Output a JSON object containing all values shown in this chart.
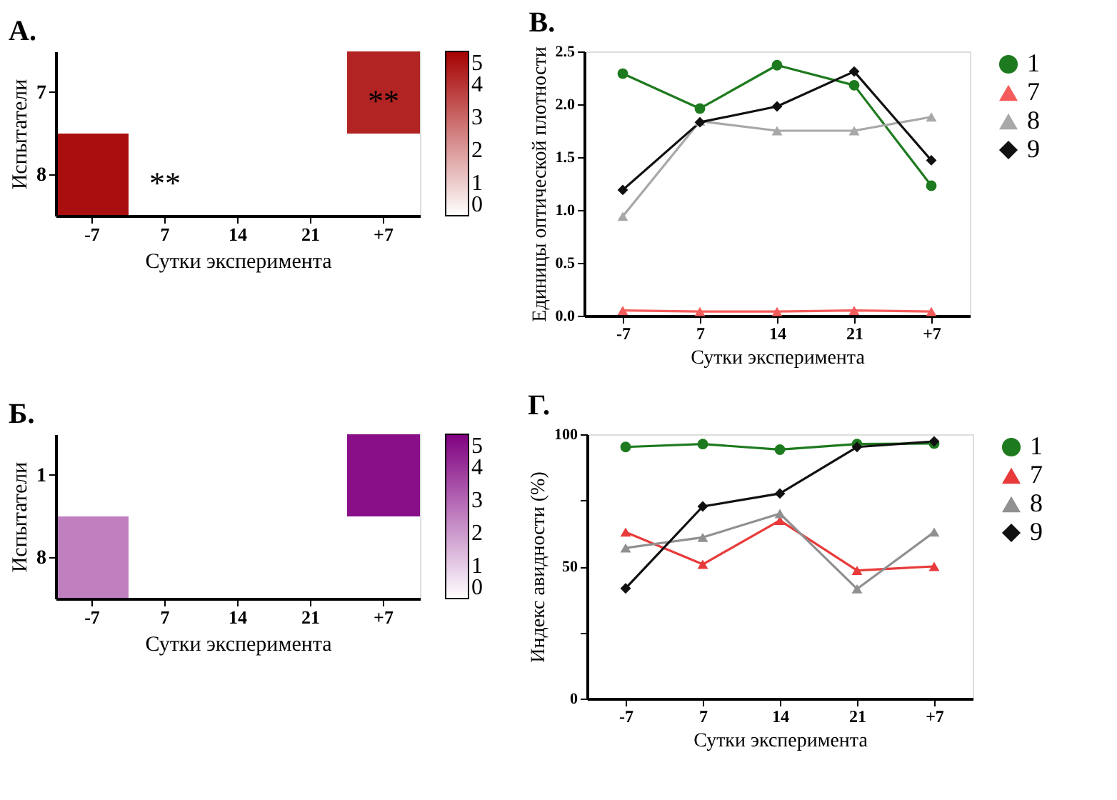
{
  "chart_data": [
    {
      "type": "heatmap",
      "title": "A.",
      "xlabel": "Сутки эксперимента",
      "ylabel": "Испытатели",
      "categories": [
        "-7",
        "7",
        "14",
        "21",
        "+7"
      ],
      "y_categories": [
        "7",
        "8"
      ],
      "cells": [
        [
          0,
          0,
          0,
          0,
          4.3
        ],
        [
          4.7,
          0,
          0,
          0,
          0
        ]
      ],
      "cell_labels": [
        [
          null,
          null,
          null,
          null,
          "**"
        ],
        [
          null,
          "**",
          null,
          null,
          null
        ]
      ],
      "colors": [
        "#ffffff",
        "#a50000"
      ],
      "clim": [
        0,
        5
      ],
      "cticks": [
        0,
        1,
        2,
        3,
        4,
        5
      ]
    },
    {
      "type": "line",
      "title": "B.",
      "xlabel": "Сутки эксперимента",
      "ylabel": "Единицы оптической плотности",
      "categories": [
        "-7",
        "7",
        "14",
        "21",
        "+7"
      ],
      "ylim": [
        0,
        2.5
      ],
      "yticks": [
        {
          "value": 0,
          "label": "0.0"
        },
        0.5,
        {
          "value": 1,
          "label": "1.0"
        },
        1.5,
        {
          "value": 2,
          "label": "2.0"
        },
        2.5
      ],
      "grid": false,
      "legend": "right",
      "series": [
        {
          "name": "1",
          "color": "#1e7a1e",
          "marker": "circle",
          "values": [
            2.29,
            1.96,
            2.37,
            2.18,
            1.23
          ]
        },
        {
          "name": "7",
          "color": "#f45c5c",
          "marker": "triangle",
          "values": [
            0.05,
            0.04,
            0.04,
            0.05,
            0.04
          ]
        },
        {
          "name": "8",
          "color": "#a8a8a8",
          "marker": "triangle",
          "values": [
            0.94,
            1.84,
            1.75,
            1.75,
            1.88
          ]
        },
        {
          "name": "9",
          "color": "#111111",
          "marker": "diamond",
          "values": [
            1.19,
            1.83,
            1.98,
            2.31,
            1.47
          ]
        }
      ]
    },
    {
      "type": "heatmap",
      "title": "Б.",
      "xlabel": "Сутки эксперимента",
      "ylabel": "Испытатели",
      "categories": [
        "-7",
        "7",
        "14",
        "21",
        "+7"
      ],
      "y_categories": [
        "1",
        "8"
      ],
      "cells": [
        [
          0,
          0,
          0,
          0,
          4.7
        ],
        [
          2.5,
          0,
          0,
          0,
          0
        ]
      ],
      "colors": [
        "#ffffff",
        "#800080"
      ],
      "clim": [
        0,
        5
      ],
      "cticks": [
        0,
        1,
        2,
        3,
        4,
        5
      ]
    },
    {
      "type": "line",
      "title": "Г.",
      "xlabel": "Сутки эксперимента",
      "ylabel": "Индекс авидности (%)",
      "categories": [
        "-7",
        "7",
        "14",
        "21",
        "+7"
      ],
      "ylim": [
        0,
        100
      ],
      "yticks": [
        0,
        {
          "value": 25,
          "label": null
        },
        50,
        {
          "value": 75,
          "label": null
        },
        100
      ],
      "grid": false,
      "legend": "right",
      "series": [
        {
          "name": "1",
          "color": "#1e7a1e",
          "marker": "circle",
          "values": [
            95.2,
            96.3,
            94.2,
            96.3,
            96.5
          ]
        },
        {
          "name": "7",
          "color": "#e83a3a",
          "marker": "triangle",
          "values": [
            63,
            50.8,
            67.4,
            48.5,
            50
          ]
        },
        {
          "name": "8",
          "color": "#909090",
          "marker": "triangle",
          "values": [
            57,
            61,
            70,
            41.5,
            63
          ]
        },
        {
          "name": "9",
          "color": "#111111",
          "marker": "diamond",
          "values": [
            41.7,
            72.7,
            77.6,
            95.2,
            97.3
          ]
        }
      ]
    }
  ]
}
